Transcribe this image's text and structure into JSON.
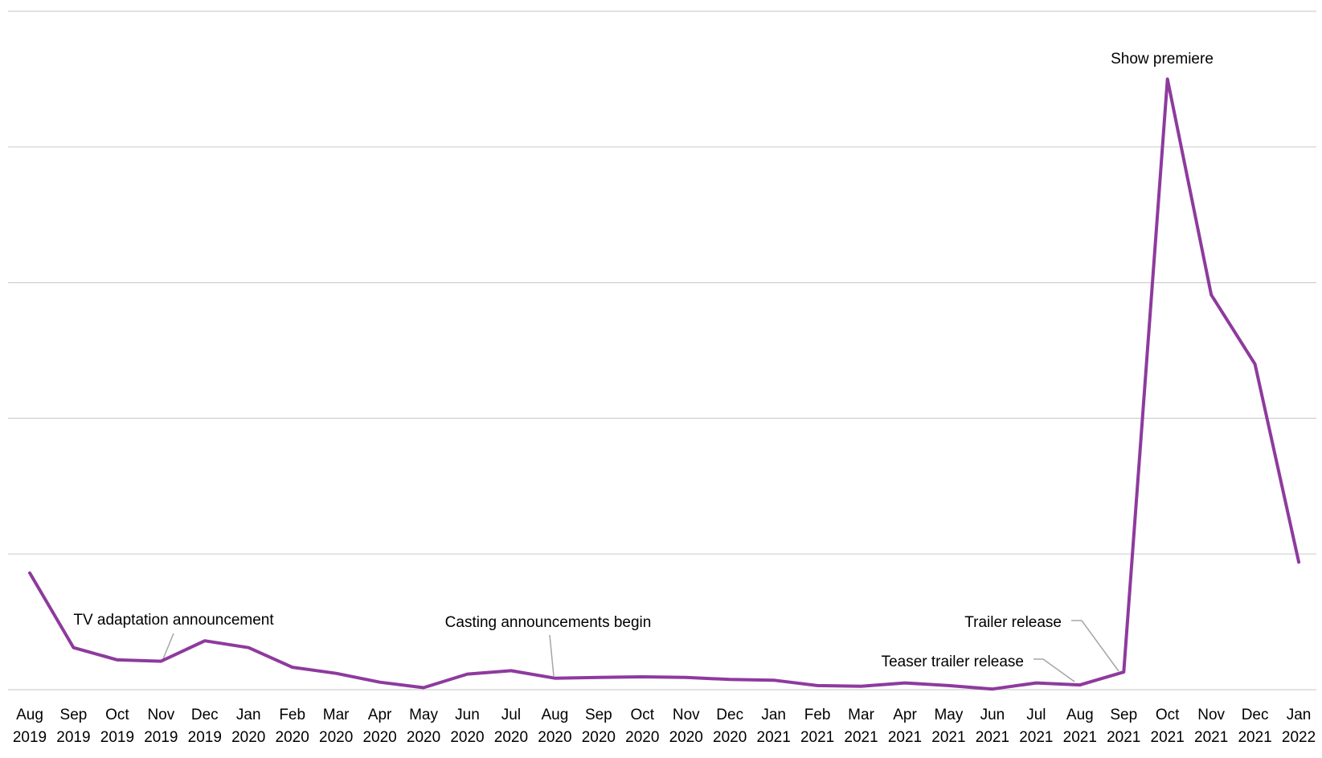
{
  "chart_data": {
    "type": "line",
    "title": "",
    "xlabel": "",
    "ylabel": "",
    "ylim": [
      0,
      100
    ],
    "grid": true,
    "legend": "none",
    "x": [
      {
        "month": "Aug",
        "year": "2019"
      },
      {
        "month": "Sep",
        "year": "2019"
      },
      {
        "month": "Oct",
        "year": "2019"
      },
      {
        "month": "Nov",
        "year": "2019"
      },
      {
        "month": "Dec",
        "year": "2019"
      },
      {
        "month": "Jan",
        "year": "2020"
      },
      {
        "month": "Feb",
        "year": "2020"
      },
      {
        "month": "Mar",
        "year": "2020"
      },
      {
        "month": "Apr",
        "year": "2020"
      },
      {
        "month": "May",
        "year": "2020"
      },
      {
        "month": "Jun",
        "year": "2020"
      },
      {
        "month": "Jul",
        "year": "2020"
      },
      {
        "month": "Aug",
        "year": "2020"
      },
      {
        "month": "Sep",
        "year": "2020"
      },
      {
        "month": "Oct",
        "year": "2020"
      },
      {
        "month": "Nov",
        "year": "2020"
      },
      {
        "month": "Dec",
        "year": "2020"
      },
      {
        "month": "Jan",
        "year": "2021"
      },
      {
        "month": "Feb",
        "year": "2021"
      },
      {
        "month": "Mar",
        "year": "2021"
      },
      {
        "month": "Apr",
        "year": "2021"
      },
      {
        "month": "May",
        "year": "2021"
      },
      {
        "month": "Jun",
        "year": "2021"
      },
      {
        "month": "Jul",
        "year": "2021"
      },
      {
        "month": "Aug",
        "year": "2021"
      },
      {
        "month": "Sep",
        "year": "2021"
      },
      {
        "month": "Oct",
        "year": "2021"
      },
      {
        "month": "Nov",
        "year": "2021"
      },
      {
        "month": "Dec",
        "year": "2021"
      },
      {
        "month": "Jan",
        "year": "2022"
      }
    ],
    "series": [
      {
        "color": "#8e3a9e",
        "values": [
          17.2,
          6.2,
          4.4,
          4.2,
          7.2,
          6.2,
          3.3,
          2.4,
          1.1,
          0.3,
          2.3,
          2.8,
          1.7,
          1.8,
          1.9,
          1.8,
          1.5,
          1.4,
          0.6,
          0.5,
          1.0,
          0.6,
          0.1,
          1.0,
          0.7,
          2.6,
          90.0,
          58.2,
          48.0,
          18.8
        ]
      }
    ],
    "annotations": [
      {
        "text": "TV adaptation announcement",
        "index": 3
      },
      {
        "text": "Casting announcements begin",
        "index": 12
      },
      {
        "text": "Trailer release",
        "index": 25
      },
      {
        "text": "Teaser trailer release",
        "index": 24
      },
      {
        "text": "Show premiere",
        "index": 26
      }
    ],
    "colors": {
      "line": "#8e3a9e",
      "grid": "#d0d0d0",
      "leader": "#a6a6a6"
    }
  }
}
